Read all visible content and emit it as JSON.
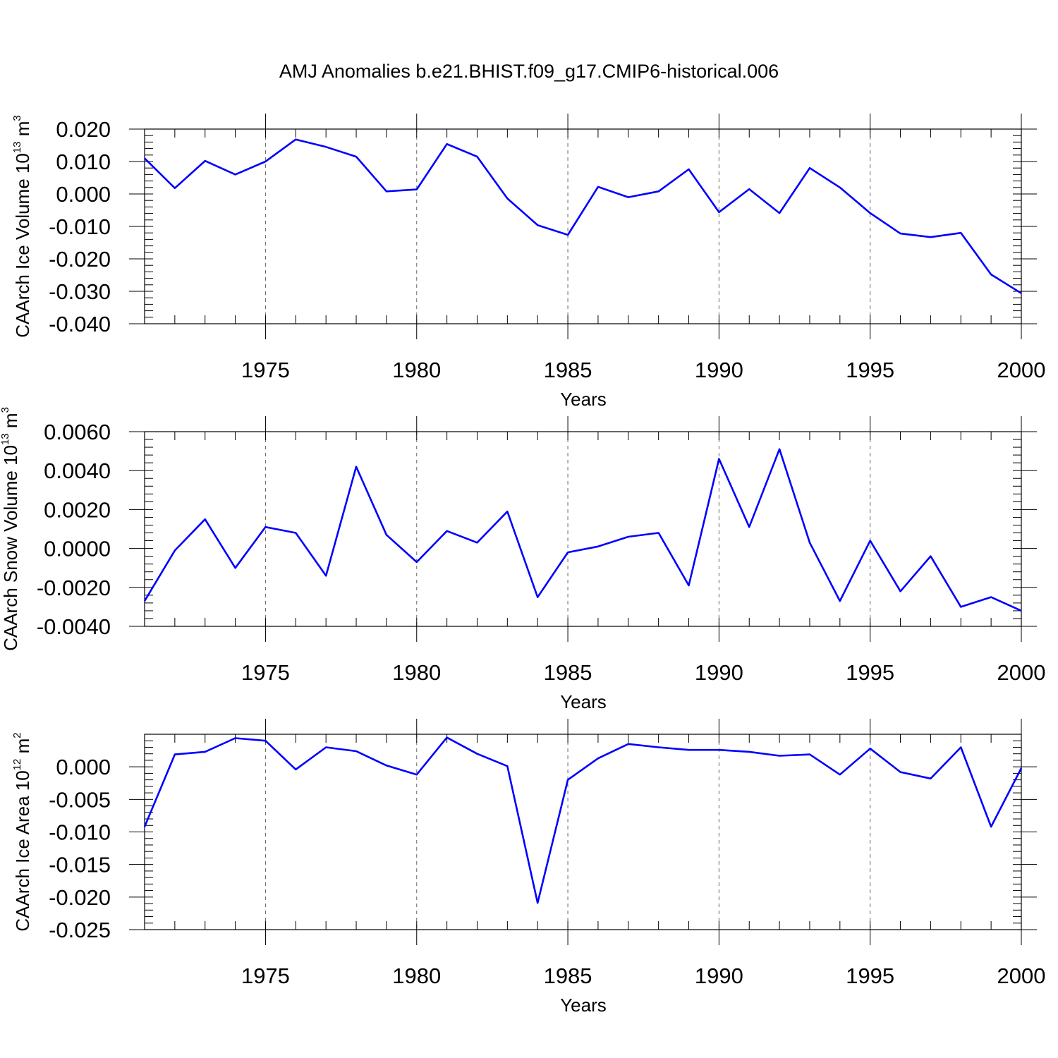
{
  "page": {
    "title": "AMJ Anomalies b.e21.BHIST.f09_g17.CMIP6-historical.006"
  },
  "colors": {
    "line": "#0000ff",
    "axis": "#000000",
    "grid": "#666666"
  },
  "chart_data": [
    {
      "type": "line",
      "title": "AMJ Anomalies b.e21.BHIST.f09_g17.CMIP6-historical.006",
      "ylabel": {
        "text": "CAArch Ice Volume 10",
        "exp": "13",
        "unit": " m",
        "unit_exp": "3"
      },
      "xlabel": "Years",
      "xlim": [
        1971,
        2000
      ],
      "ylim": [
        -0.04,
        0.02
      ],
      "xticks": [
        1975,
        1980,
        1985,
        1990,
        1995,
        2000
      ],
      "xtick_labels": [
        "1975",
        "1980",
        "1985",
        "1990",
        "1995",
        "2000"
      ],
      "yticks": [
        0.02,
        0.01,
        0.0,
        -0.01,
        -0.02,
        -0.03,
        -0.04
      ],
      "ytick_labels": [
        "0.020",
        "0.010",
        "0.000",
        "-0.010",
        "-0.020",
        "-0.030",
        "-0.040"
      ],
      "grid": "vertical dashed at major x ticks",
      "series": [
        {
          "name": "Ice Volume",
          "x": [
            1971,
            1972,
            1973,
            1974,
            1975,
            1976,
            1977,
            1978,
            1979,
            1980,
            1981,
            1982,
            1983,
            1984,
            1985,
            1986,
            1987,
            1988,
            1989,
            1990,
            1991,
            1992,
            1993,
            1994,
            1995,
            1996,
            1997,
            1998,
            1999,
            2000
          ],
          "values": [
            0.011,
            0.0018,
            0.0102,
            0.006,
            0.01,
            0.0168,
            0.0145,
            0.0115,
            0.0008,
            0.0014,
            0.0154,
            0.0115,
            -0.0014,
            -0.0096,
            -0.0126,
            0.0022,
            -0.001,
            0.0008,
            0.0076,
            -0.0056,
            0.0015,
            -0.0059,
            0.008,
            0.002,
            -0.0059,
            -0.0122,
            -0.0133,
            -0.012,
            -0.0248,
            -0.0306
          ]
        }
      ]
    },
    {
      "type": "line",
      "ylabel": {
        "text": "CAArch Snow Volume 10",
        "exp": "13",
        "unit": " m",
        "unit_exp": "3"
      },
      "xlabel": "Years",
      "xlim": [
        1971,
        2000
      ],
      "ylim": [
        -0.004,
        0.006
      ],
      "xticks": [
        1975,
        1980,
        1985,
        1990,
        1995,
        2000
      ],
      "xtick_labels": [
        "1975",
        "1980",
        "1985",
        "1990",
        "1995",
        "2000"
      ],
      "yticks": [
        0.006,
        0.004,
        0.002,
        0.0,
        -0.002,
        -0.004
      ],
      "ytick_labels": [
        "0.0060",
        "0.0040",
        "0.0020",
        "0.0000",
        "-0.0020",
        "-0.0040"
      ],
      "grid": "vertical dashed at major x ticks",
      "series": [
        {
          "name": "Snow Volume",
          "x": [
            1971,
            1972,
            1973,
            1974,
            1975,
            1976,
            1977,
            1978,
            1979,
            1980,
            1981,
            1982,
            1983,
            1984,
            1985,
            1986,
            1987,
            1988,
            1989,
            1990,
            1991,
            1992,
            1993,
            1994,
            1995,
            1996,
            1997,
            1998,
            1999,
            2000
          ],
          "values": [
            -0.0027,
            -0.0001,
            0.0015,
            -0.001,
            0.0011,
            0.0008,
            -0.0014,
            0.0042,
            0.0007,
            -0.0007,
            0.0009,
            0.0003,
            0.0019,
            -0.0025,
            -0.0002,
            0.0001,
            0.0006,
            0.0008,
            -0.0019,
            0.0046,
            0.0011,
            0.0051,
            0.0003,
            -0.0027,
            0.0004,
            -0.0022,
            -0.0004,
            -0.003,
            -0.0025,
            -0.0032
          ]
        }
      ]
    },
    {
      "type": "line",
      "ylabel": {
        "text": "CAArch Ice Area 10",
        "exp": "12",
        "unit": " m",
        "unit_exp": "2"
      },
      "xlabel": "Years",
      "xlim": [
        1971,
        2000
      ],
      "ylim": [
        -0.025,
        0.005
      ],
      "xticks": [
        1975,
        1980,
        1985,
        1990,
        1995,
        2000
      ],
      "xtick_labels": [
        "1975",
        "1980",
        "1985",
        "1990",
        "1995",
        "2000"
      ],
      "yticks": [
        0.0,
        -0.005,
        -0.01,
        -0.015,
        -0.02,
        -0.025
      ],
      "ytick_labels": [
        "0.000",
        "-0.005",
        "-0.010",
        "-0.015",
        "-0.020",
        "-0.025"
      ],
      "grid": "vertical dashed at major x ticks",
      "series": [
        {
          "name": "Ice Area",
          "x": [
            1971,
            1972,
            1973,
            1974,
            1975,
            1976,
            1977,
            1978,
            1979,
            1980,
            1981,
            1982,
            1983,
            1984,
            1985,
            1986,
            1987,
            1988,
            1989,
            1990,
            1991,
            1992,
            1993,
            1994,
            1995,
            1996,
            1997,
            1998,
            1999,
            2000
          ],
          "values": [
            -0.0092,
            0.0019,
            0.0023,
            0.0044,
            0.004,
            -0.0004,
            0.003,
            0.0024,
            0.0002,
            -0.0012,
            0.0045,
            0.002,
            0.0001,
            -0.0209,
            -0.002,
            0.0013,
            0.0035,
            0.003,
            0.0026,
            0.0026,
            0.0023,
            0.0017,
            0.0019,
            -0.0012,
            0.0028,
            -0.0008,
            -0.0018,
            0.003,
            -0.0092,
            -0.0002
          ]
        }
      ]
    }
  ]
}
